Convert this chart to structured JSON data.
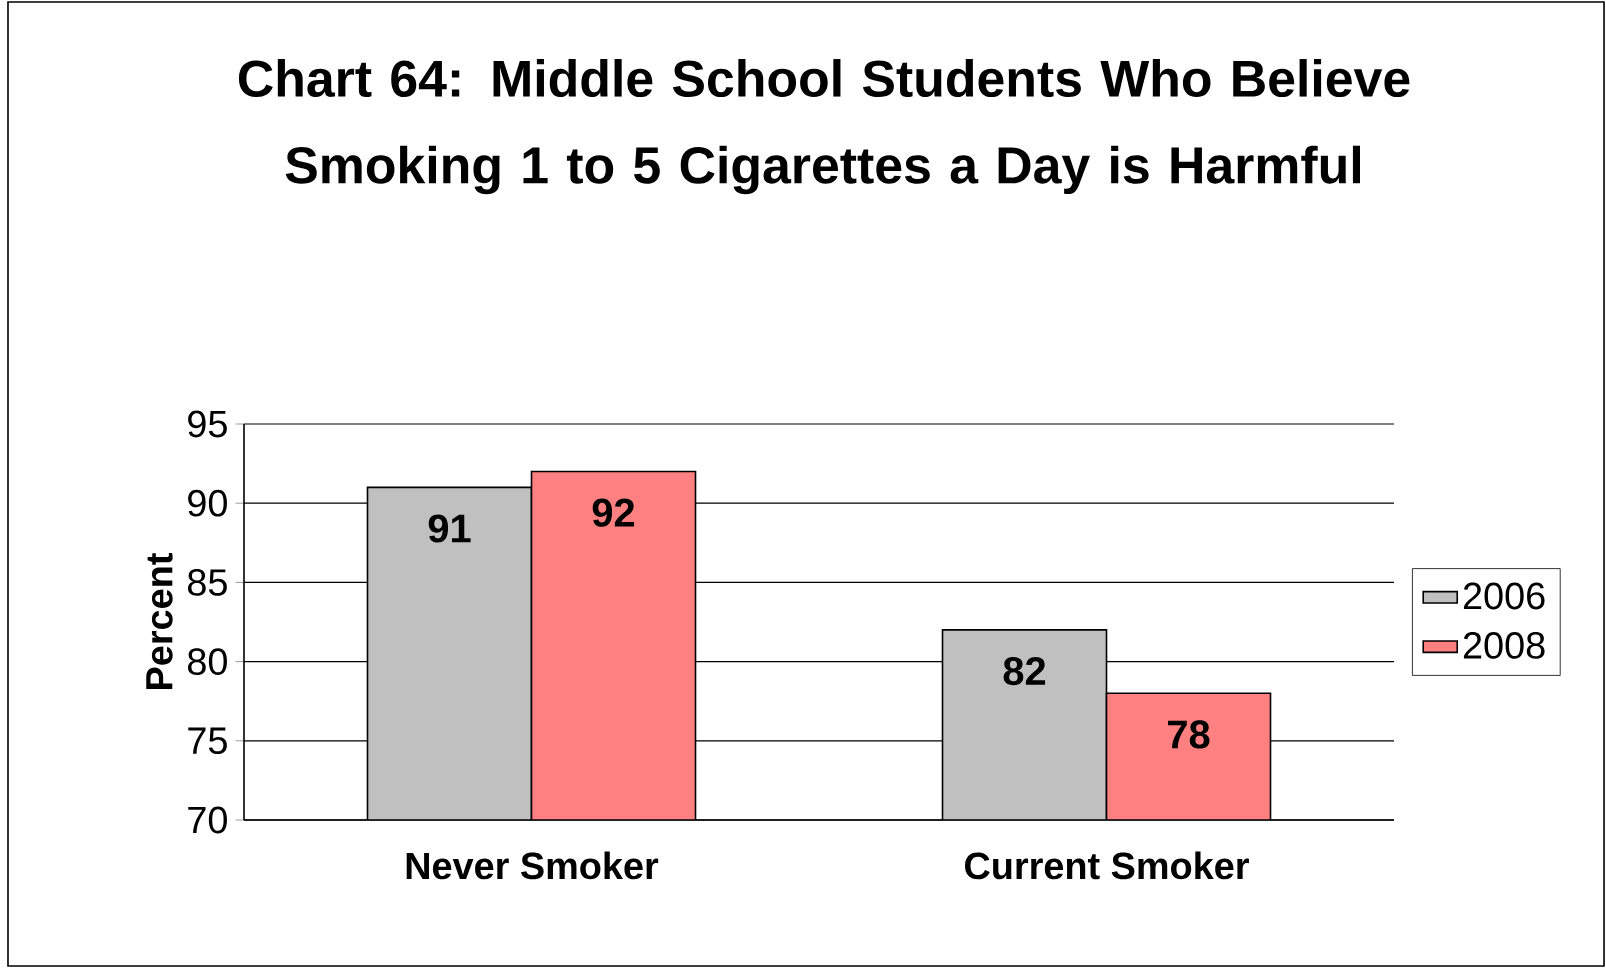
{
  "chart_data": {
    "type": "bar",
    "title": "Chart 64: Middle School Students Who Believe Smoking 1 to 5 Cigarettes a Day is Harmful",
    "ylabel": "Percent",
    "categories": [
      "Never Smoker",
      "Current Smoker"
    ],
    "series": [
      {
        "name": "2006",
        "color": "#c0c0c0",
        "values": [
          91,
          82
        ]
      },
      {
        "name": "2008",
        "color": "#ff8080",
        "values": [
          92,
          78
        ]
      }
    ],
    "ylim": [
      70,
      95
    ],
    "yticks": [
      70,
      75,
      80,
      85,
      90,
      95
    ],
    "grid": "y",
    "legend": "right",
    "data_labels": true
  }
}
